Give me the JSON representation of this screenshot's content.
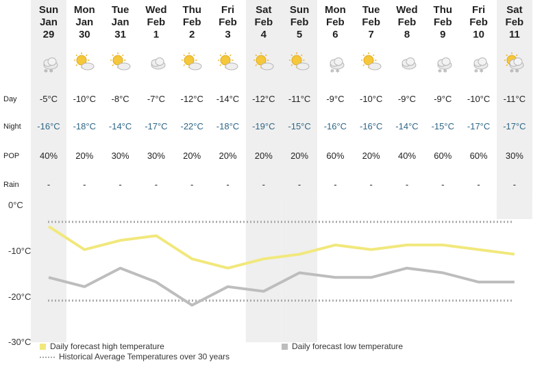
{
  "row_labels": {
    "day": "Day",
    "night": "Night",
    "pop": "POP",
    "rain": "Rain"
  },
  "days": [
    {
      "dow": "Sun",
      "month": "Jan",
      "date": "29",
      "icon": "snow-cloud-icon",
      "day": "-5°C",
      "night": "-16°C",
      "pop": "40%",
      "rain": "-"
    },
    {
      "dow": "Mon",
      "month": "Jan",
      "date": "30",
      "icon": "sun-cloud-icon",
      "day": "-10°C",
      "night": "-18°C",
      "pop": "20%",
      "rain": "-"
    },
    {
      "dow": "Tue",
      "month": "Jan",
      "date": "31",
      "icon": "sun-cloud-icon",
      "day": "-8°C",
      "night": "-14°C",
      "pop": "30%",
      "rain": "-"
    },
    {
      "dow": "Wed",
      "month": "Feb",
      "date": "1",
      "icon": "cloud-icon",
      "day": "-7°C",
      "night": "-17°C",
      "pop": "30%",
      "rain": "-"
    },
    {
      "dow": "Thu",
      "month": "Feb",
      "date": "2",
      "icon": "sun-cloud-icon",
      "day": "-12°C",
      "night": "-22°C",
      "pop": "20%",
      "rain": "-"
    },
    {
      "dow": "Fri",
      "month": "Feb",
      "date": "3",
      "icon": "sun-cloud-icon",
      "day": "-14°C",
      "night": "-18°C",
      "pop": "20%",
      "rain": "-"
    },
    {
      "dow": "Sat",
      "month": "Feb",
      "date": "4",
      "icon": "sun-cloud-icon",
      "day": "-12°C",
      "night": "-19°C",
      "pop": "20%",
      "rain": "-"
    },
    {
      "dow": "Sun",
      "month": "Feb",
      "date": "5",
      "icon": "sun-cloud-icon",
      "day": "-11°C",
      "night": "-15°C",
      "pop": "20%",
      "rain": "-"
    },
    {
      "dow": "Mon",
      "month": "Feb",
      "date": "6",
      "icon": "snow-cloud-icon",
      "day": "-9°C",
      "night": "-16°C",
      "pop": "60%",
      "rain": "-"
    },
    {
      "dow": "Tue",
      "month": "Feb",
      "date": "7",
      "icon": "sun-cloud-icon",
      "day": "-10°C",
      "night": "-16°C",
      "pop": "20%",
      "rain": "-"
    },
    {
      "dow": "Wed",
      "month": "Feb",
      "date": "8",
      "icon": "cloud-icon",
      "day": "-9°C",
      "night": "-14°C",
      "pop": "40%",
      "rain": "-"
    },
    {
      "dow": "Thu",
      "month": "Feb",
      "date": "9",
      "icon": "snow-cloud-icon",
      "day": "-9°C",
      "night": "-15°C",
      "pop": "60%",
      "rain": "-"
    },
    {
      "dow": "Fri",
      "month": "Feb",
      "date": "10",
      "icon": "snow-cloud-icon",
      "day": "-10°C",
      "night": "-17°C",
      "pop": "60%",
      "rain": "-"
    },
    {
      "dow": "Sat",
      "month": "Feb",
      "date": "11",
      "icon": "sun-snow-cloud-icon",
      "day": "-11°C",
      "night": "-17°C",
      "pop": "30%",
      "rain": "-"
    }
  ],
  "chart_data": {
    "type": "line",
    "y_tick_labels": [
      "0°C",
      "-10°C",
      "-20°C",
      "-30°C"
    ],
    "y_ticks": [
      0,
      -10,
      -20,
      -30
    ],
    "ylim": [
      -30,
      0
    ],
    "categories": [
      "Sun Jan 29",
      "Mon Jan 30",
      "Tue Jan 31",
      "Wed Feb 1",
      "Thu Feb 2",
      "Fri Feb 3",
      "Sat Feb 4",
      "Sun Feb 5",
      "Mon Feb 6",
      "Tue Feb 7",
      "Wed Feb 8",
      "Thu Feb 9",
      "Fri Feb 10",
      "Sat Feb 11"
    ],
    "series": [
      {
        "name": "Daily forecast high temperature",
        "color": "#f1e87c",
        "values": [
          -5,
          -10,
          -8,
          -7,
          -12,
          -14,
          -12,
          -11,
          -9,
          -10,
          -9,
          -9,
          -10,
          -11
        ]
      },
      {
        "name": "Daily forecast low temperature",
        "color": "#bdbdbd",
        "values": [
          -16,
          -18,
          -14,
          -17,
          -22,
          -18,
          -19,
          -15,
          -16,
          -16,
          -14,
          -15,
          -17,
          -17
        ]
      }
    ],
    "historical_average": {
      "name": "Historical Average Temperatures over 30 years",
      "color": "#a8a8a8",
      "high": -4,
      "low": -21
    },
    "legend_placement": "bottom"
  }
}
